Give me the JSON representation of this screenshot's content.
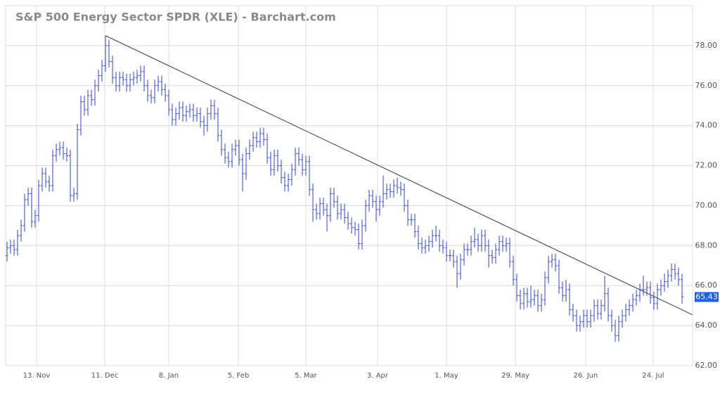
{
  "chart_data": {
    "type": "ohlc",
    "title": "S&P 500 Energy Sector SPDR (XLE) - Barchart.com",
    "color": "#3046d6",
    "trendline_color": "#555555",
    "grid": true,
    "ylim": [
      62,
      80
    ],
    "yticks": [
      {
        "value": 62,
        "label": "62.00"
      },
      {
        "value": 64,
        "label": "64.00"
      },
      {
        "value": 66,
        "label": "66.00"
      },
      {
        "value": 68,
        "label": "68.00"
      },
      {
        "value": 70,
        "label": "70.00"
      },
      {
        "value": 72,
        "label": "72.00"
      },
      {
        "value": 74,
        "label": "74.00"
      },
      {
        "value": 76,
        "label": "76.00"
      },
      {
        "value": 78,
        "label": "78.00"
      }
    ],
    "xticks": [
      {
        "value": 8.4,
        "label": "13. Nov"
      },
      {
        "value": 27.8,
        "label": "11. Dec"
      },
      {
        "value": 46,
        "label": "8. Jan"
      },
      {
        "value": 65.8,
        "label": "5. Feb"
      },
      {
        "value": 85,
        "label": "5. Mar"
      },
      {
        "value": 105.4,
        "label": "3. Apr"
      },
      {
        "value": 125,
        "label": "1. May"
      },
      {
        "value": 144.6,
        "label": "29. May"
      },
      {
        "value": 164.6,
        "label": "26. Jun"
      },
      {
        "value": 183.8,
        "label": "24. Jul"
      }
    ],
    "trendline": {
      "x": [
        28,
        195
      ],
      "y": [
        78.5,
        64.54
      ]
    },
    "ohlc": [
      [
        67.5,
        68.2,
        67.2,
        67.9
      ],
      [
        67.9,
        68.3,
        67.6,
        68.0
      ],
      [
        68.0,
        68.3,
        67.5,
        67.8
      ],
      [
        67.8,
        68.8,
        67.5,
        68.5
      ],
      [
        68.5,
        69.3,
        68.2,
        69.0
      ],
      [
        69.0,
        70.6,
        68.7,
        70.3
      ],
      [
        70.3,
        70.9,
        70.0,
        70.6
      ],
      [
        70.6,
        70.9,
        68.9,
        69.2
      ],
      [
        69.2,
        69.8,
        68.9,
        69.5
      ],
      [
        69.5,
        71.3,
        69.2,
        71.0
      ],
      [
        71.0,
        71.9,
        70.7,
        71.6
      ],
      [
        71.6,
        71.9,
        70.9,
        71.2
      ],
      [
        71.2,
        71.5,
        70.7,
        71.0
      ],
      [
        71.0,
        72.8,
        70.7,
        72.5
      ],
      [
        72.5,
        73.1,
        72.2,
        72.8
      ],
      [
        72.8,
        73.2,
        72.5,
        72.9
      ],
      [
        72.9,
        73.2,
        72.3,
        72.6
      ],
      [
        72.6,
        72.9,
        72.2,
        72.5
      ],
      [
        72.5,
        72.8,
        70.2,
        70.5
      ],
      [
        70.5,
        70.9,
        70.2,
        70.6
      ],
      [
        70.6,
        74.1,
        70.3,
        73.8
      ],
      [
        73.8,
        75.5,
        73.5,
        75.2
      ],
      [
        75.2,
        75.5,
        74.5,
        74.8
      ],
      [
        74.8,
        75.8,
        74.5,
        75.5
      ],
      [
        75.5,
        75.8,
        75.0,
        75.3
      ],
      [
        75.3,
        76.3,
        75.0,
        76.0
      ],
      [
        76.0,
        76.8,
        75.7,
        76.5
      ],
      [
        76.5,
        77.3,
        76.2,
        77.0
      ],
      [
        77.0,
        78.5,
        76.7,
        78.0
      ],
      [
        78.0,
        78.3,
        76.9,
        77.2
      ],
      [
        77.2,
        77.5,
        76.1,
        76.4
      ],
      [
        76.4,
        76.7,
        75.7,
        76.0
      ],
      [
        76.0,
        76.7,
        75.7,
        76.4
      ],
      [
        76.4,
        76.7,
        76.0,
        76.3
      ],
      [
        76.3,
        76.6,
        75.7,
        76.0
      ],
      [
        76.0,
        76.6,
        75.7,
        76.3
      ],
      [
        76.3,
        76.7,
        76.0,
        76.4
      ],
      [
        76.4,
        76.8,
        76.1,
        76.5
      ],
      [
        76.5,
        77.0,
        76.2,
        76.7
      ],
      [
        76.7,
        77.0,
        75.7,
        76.0
      ],
      [
        76.0,
        76.3,
        75.2,
        75.5
      ],
      [
        75.5,
        75.8,
        75.1,
        75.4
      ],
      [
        75.4,
        76.3,
        75.1,
        76.0
      ],
      [
        76.0,
        76.5,
        75.7,
        76.2
      ],
      [
        76.2,
        76.5,
        75.5,
        75.8
      ],
      [
        75.8,
        76.1,
        75.2,
        75.5
      ],
      [
        75.5,
        75.8,
        74.5,
        74.8
      ],
      [
        74.8,
        75.1,
        74.0,
        74.3
      ],
      [
        74.3,
        74.9,
        74.0,
        74.6
      ],
      [
        74.6,
        75.2,
        74.3,
        74.9
      ],
      [
        74.9,
        75.2,
        74.2,
        74.5
      ],
      [
        74.5,
        75.0,
        74.2,
        74.7
      ],
      [
        74.7,
        75.1,
        74.4,
        74.8
      ],
      [
        74.8,
        75.1,
        74.2,
        74.5
      ],
      [
        74.5,
        74.9,
        74.2,
        74.6
      ],
      [
        74.6,
        74.9,
        73.9,
        74.2
      ],
      [
        74.2,
        74.5,
        73.5,
        74.0
      ],
      [
        74.0,
        74.9,
        73.7,
        74.6
      ],
      [
        74.6,
        75.3,
        74.3,
        75.0
      ],
      [
        75.0,
        75.3,
        74.3,
        74.6
      ],
      [
        74.6,
        74.9,
        73.2,
        73.5
      ],
      [
        73.5,
        73.8,
        72.5,
        72.8
      ],
      [
        72.8,
        73.1,
        72.1,
        72.4
      ],
      [
        72.4,
        72.7,
        71.9,
        72.2
      ],
      [
        72.2,
        73.1,
        71.9,
        72.8
      ],
      [
        72.8,
        73.3,
        72.5,
        73.0
      ],
      [
        73.0,
        73.3,
        72.0,
        72.3
      ],
      [
        72.3,
        72.6,
        70.7,
        71.6
      ],
      [
        71.6,
        72.9,
        71.3,
        72.6
      ],
      [
        72.6,
        73.3,
        72.3,
        73.0
      ],
      [
        73.0,
        73.7,
        72.7,
        73.4
      ],
      [
        73.4,
        73.7,
        72.9,
        73.2
      ],
      [
        73.2,
        73.9,
        72.9,
        73.6
      ],
      [
        73.6,
        73.9,
        73.0,
        73.3
      ],
      [
        73.3,
        73.6,
        72.1,
        72.4
      ],
      [
        72.4,
        72.7,
        71.5,
        71.8
      ],
      [
        71.8,
        72.8,
        71.5,
        72.5
      ],
      [
        72.5,
        72.8,
        71.7,
        72.0
      ],
      [
        72.0,
        72.3,
        71.1,
        71.4
      ],
      [
        71.4,
        71.7,
        70.7,
        71.0
      ],
      [
        71.0,
        71.6,
        70.7,
        71.3
      ],
      [
        71.3,
        72.1,
        71.0,
        71.8
      ],
      [
        71.8,
        72.9,
        71.5,
        72.6
      ],
      [
        72.6,
        72.9,
        72.0,
        72.3
      ],
      [
        72.3,
        72.6,
        71.5,
        71.8
      ],
      [
        71.8,
        72.5,
        71.5,
        72.2
      ],
      [
        72.2,
        72.5,
        70.5,
        70.8
      ],
      [
        70.8,
        71.1,
        69.2,
        69.8
      ],
      [
        69.8,
        70.1,
        69.3,
        69.6
      ],
      [
        69.6,
        70.4,
        69.3,
        70.1
      ],
      [
        70.1,
        70.4,
        69.5,
        69.8
      ],
      [
        69.8,
        70.1,
        68.7,
        69.5
      ],
      [
        69.5,
        70.9,
        69.2,
        70.6
      ],
      [
        70.6,
        70.9,
        69.9,
        70.2
      ],
      [
        70.2,
        70.5,
        69.3,
        69.6
      ],
      [
        69.6,
        70.1,
        69.3,
        69.8
      ],
      [
        69.8,
        70.1,
        69.1,
        69.4
      ],
      [
        69.4,
        69.7,
        68.8,
        69.1
      ],
      [
        69.1,
        69.4,
        68.6,
        68.9
      ],
      [
        68.9,
        69.2,
        68.5,
        68.8
      ],
      [
        68.8,
        69.1,
        67.8,
        68.1
      ],
      [
        68.1,
        69.3,
        67.8,
        69.0
      ],
      [
        69.0,
        70.3,
        68.7,
        70.0
      ],
      [
        70.0,
        70.8,
        69.7,
        70.5
      ],
      [
        70.5,
        70.8,
        69.9,
        70.2
      ],
      [
        70.2,
        70.5,
        69.2,
        69.8
      ],
      [
        69.8,
        70.5,
        69.5,
        70.2
      ],
      [
        70.2,
        71.5,
        69.9,
        70.6
      ],
      [
        70.6,
        71.1,
        70.3,
        70.8
      ],
      [
        70.8,
        71.1,
        70.4,
        70.7
      ],
      [
        70.7,
        71.3,
        70.4,
        71.0
      ],
      [
        71.0,
        71.4,
        70.6,
        70.9
      ],
      [
        70.9,
        71.2,
        70.5,
        70.8
      ],
      [
        70.8,
        71.1,
        69.7,
        70.0
      ],
      [
        70.0,
        70.3,
        69.0,
        69.3
      ],
      [
        69.3,
        69.6,
        69.0,
        69.3
      ],
      [
        69.3,
        69.6,
        68.4,
        68.7
      ],
      [
        68.7,
        69.0,
        67.8,
        68.1
      ],
      [
        68.1,
        68.4,
        67.6,
        67.9
      ],
      [
        67.9,
        68.3,
        67.6,
        68.0
      ],
      [
        68.0,
        68.5,
        67.7,
        68.2
      ],
      [
        68.2,
        68.8,
        67.9,
        68.5
      ],
      [
        68.5,
        69.0,
        68.2,
        68.5
      ],
      [
        68.5,
        68.8,
        67.7,
        68.0
      ],
      [
        68.0,
        68.3,
        67.6,
        67.9
      ],
      [
        67.9,
        68.2,
        67.2,
        67.5
      ],
      [
        67.5,
        67.8,
        67.2,
        67.5
      ],
      [
        67.5,
        67.8,
        66.9,
        67.2
      ],
      [
        67.2,
        67.5,
        65.9,
        66.6
      ],
      [
        66.6,
        67.6,
        66.3,
        67.3
      ],
      [
        67.3,
        68.1,
        67.0,
        67.8
      ],
      [
        67.8,
        68.1,
        67.5,
        67.8
      ],
      [
        67.8,
        68.5,
        67.5,
        68.2
      ],
      [
        68.2,
        68.9,
        67.9,
        68.3
      ],
      [
        68.3,
        68.6,
        67.7,
        68.0
      ],
      [
        68.0,
        68.8,
        67.7,
        68.5
      ],
      [
        68.5,
        68.8,
        67.7,
        68.0
      ],
      [
        68.0,
        68.3,
        66.9,
        67.5
      ],
      [
        67.5,
        67.8,
        67.1,
        67.4
      ],
      [
        67.4,
        68.1,
        67.1,
        67.8
      ],
      [
        67.8,
        68.5,
        67.5,
        68.2
      ],
      [
        68.2,
        68.5,
        67.7,
        68.0
      ],
      [
        68.0,
        68.4,
        67.7,
        68.1
      ],
      [
        68.1,
        68.4,
        66.9,
        67.2
      ],
      [
        67.2,
        67.5,
        66.0,
        66.3
      ],
      [
        66.3,
        66.6,
        65.2,
        65.5
      ],
      [
        65.5,
        65.8,
        64.8,
        65.1
      ],
      [
        65.1,
        65.9,
        64.8,
        65.6
      ],
      [
        65.6,
        65.9,
        64.9,
        65.2
      ],
      [
        65.2,
        66.0,
        64.9,
        65.3
      ],
      [
        65.3,
        65.8,
        65.0,
        65.5
      ],
      [
        65.5,
        65.8,
        64.7,
        65.0
      ],
      [
        65.0,
        65.6,
        64.7,
        65.3
      ],
      [
        65.3,
        66.7,
        65.0,
        66.4
      ],
      [
        66.4,
        67.5,
        66.1,
        67.2
      ],
      [
        67.2,
        67.6,
        66.9,
        67.3
      ],
      [
        67.3,
        67.6,
        66.7,
        67.0
      ],
      [
        67.0,
        67.3,
        65.6,
        65.9
      ],
      [
        65.9,
        66.2,
        65.2,
        65.5
      ],
      [
        65.5,
        66.3,
        65.2,
        65.8
      ],
      [
        65.8,
        66.1,
        64.5,
        64.8
      ],
      [
        64.8,
        65.1,
        64.2,
        64.5
      ],
      [
        64.5,
        64.8,
        63.7,
        64.0
      ],
      [
        64.0,
        64.5,
        63.7,
        64.2
      ],
      [
        64.2,
        64.8,
        63.9,
        64.5
      ],
      [
        64.5,
        64.8,
        63.9,
        64.2
      ],
      [
        64.2,
        64.8,
        63.9,
        64.5
      ],
      [
        64.5,
        65.3,
        64.2,
        65.0
      ],
      [
        65.0,
        65.3,
        64.3,
        64.6
      ],
      [
        64.6,
        65.3,
        64.3,
        65.0
      ],
      [
        65.0,
        66.5,
        64.7,
        65.6
      ],
      [
        65.6,
        65.9,
        64.2,
        64.5
      ],
      [
        64.5,
        64.8,
        63.7,
        64.0
      ],
      [
        64.0,
        64.3,
        63.2,
        63.5
      ],
      [
        63.5,
        64.5,
        63.2,
        64.2
      ],
      [
        64.2,
        64.8,
        63.9,
        64.5
      ],
      [
        64.5,
        65.1,
        64.2,
        64.8
      ],
      [
        64.8,
        65.3,
        64.5,
        65.0
      ],
      [
        65.0,
        65.6,
        64.7,
        65.3
      ],
      [
        65.3,
        65.8,
        65.0,
        65.5
      ],
      [
        65.5,
        66.1,
        65.2,
        65.8
      ],
      [
        65.8,
        66.5,
        65.5,
        65.8
      ],
      [
        65.8,
        66.2,
        65.5,
        65.9
      ],
      [
        65.9,
        66.2,
        65.1,
        65.4
      ],
      [
        65.4,
        65.7,
        64.8,
        65.1
      ],
      [
        65.1,
        66.1,
        64.8,
        65.8
      ],
      [
        65.8,
        66.3,
        65.5,
        66.0
      ],
      [
        66.0,
        66.6,
        65.7,
        66.2
      ],
      [
        66.2,
        66.8,
        65.9,
        66.5
      ],
      [
        66.5,
        67.1,
        66.2,
        66.8
      ],
      [
        66.8,
        67.1,
        66.3,
        66.6
      ],
      [
        66.6,
        66.9,
        66.0,
        66.3
      ],
      [
        66.3,
        66.6,
        65.1,
        65.43
      ]
    ]
  }
}
